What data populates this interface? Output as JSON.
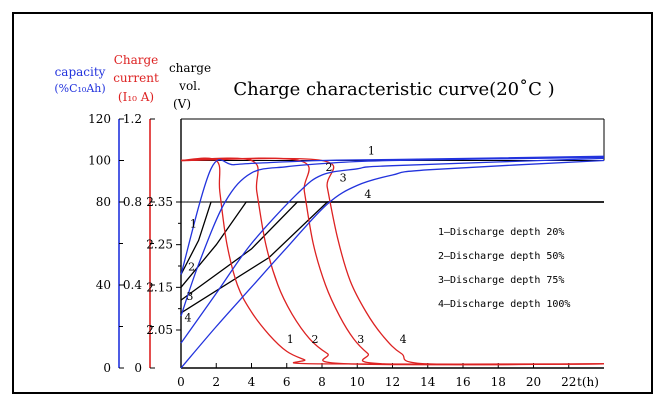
{
  "colors": {
    "capacity": "#2233dd",
    "current": "#dd2222",
    "voltage": "#000000",
    "frame": "#000000"
  },
  "chart_data": {
    "type": "line",
    "title": "Charge characteristic curve(20˚C )",
    "axes": {
      "x": {
        "label": "t(h)",
        "range": [
          0,
          24
        ],
        "ticks": [
          "0",
          "2",
          "4",
          "6",
          "8",
          "10",
          "12",
          "14",
          "16",
          "18",
          "20",
          "22"
        ]
      },
      "capacity": {
        "label_lines": [
          "capacity",
          "(%C₁₀Ah)"
        ],
        "range": [
          0,
          120
        ],
        "ticks": [
          "0",
          "40",
          "80",
          "100",
          "120"
        ]
      },
      "current": {
        "label_lines": [
          "Charge",
          "current",
          "(I₁₀ A)"
        ],
        "range": [
          0,
          1.2
        ],
        "ticks": [
          "0",
          "0.4",
          "0.8",
          "1.2"
        ]
      },
      "voltage": {
        "label_lines": [
          "charge",
          "vol.",
          "(V)"
        ],
        "range": [
          1.95,
          2.4
        ],
        "ticks": [
          "2.05",
          "2.15",
          "2.25",
          "2.35"
        ]
      }
    },
    "series": [
      {
        "name": "1",
        "kind": "voltage",
        "x": [
          0,
          1,
          1.7,
          24
        ],
        "y": [
          2.18,
          2.26,
          2.35,
          2.35
        ]
      },
      {
        "name": "2",
        "kind": "voltage",
        "x": [
          0,
          2,
          3.7,
          24
        ],
        "y": [
          2.15,
          2.25,
          2.35,
          2.35
        ]
      },
      {
        "name": "3",
        "kind": "voltage",
        "x": [
          0,
          4,
          6.6,
          24
        ],
        "y": [
          2.12,
          2.24,
          2.35,
          2.35
        ]
      },
      {
        "name": "4",
        "kind": "voltage",
        "x": [
          0,
          5,
          8.3,
          24
        ],
        "y": [
          2.09,
          2.22,
          2.35,
          2.35
        ]
      },
      {
        "name": "1",
        "kind": "current",
        "x": [
          0,
          2,
          2.2,
          2.6,
          3.2,
          4,
          5,
          6,
          7,
          7.8,
          24
        ],
        "y": [
          1.0,
          1.0,
          0.85,
          0.6,
          0.4,
          0.27,
          0.16,
          0.08,
          0.04,
          0.02,
          0.02
        ]
      },
      {
        "name": "2",
        "kind": "current",
        "x": [
          0,
          4,
          4.3,
          4.8,
          5.5,
          6.3,
          7.3,
          8.3,
          9.5,
          24
        ],
        "y": [
          1.0,
          1.0,
          0.85,
          0.6,
          0.4,
          0.26,
          0.14,
          0.07,
          0.02,
          0.02
        ]
      },
      {
        "name": "3",
        "kind": "current",
        "x": [
          0,
          6.7,
          7,
          7.5,
          8.2,
          9,
          9.8,
          10.6,
          11.5,
          24
        ],
        "y": [
          1.0,
          1.0,
          0.85,
          0.6,
          0.4,
          0.25,
          0.14,
          0.07,
          0.02,
          0.02
        ]
      },
      {
        "name": "4",
        "kind": "current",
        "x": [
          0,
          8,
          8.3,
          8.9,
          9.6,
          10.5,
          11.5,
          12.5,
          14,
          24
        ],
        "y": [
          1.0,
          1.0,
          0.87,
          0.62,
          0.42,
          0.27,
          0.15,
          0.07,
          0.02,
          0.02
        ]
      },
      {
        "name": "1",
        "kind": "capacity",
        "x": [
          0,
          1.7,
          3,
          5,
          8,
          12,
          24
        ],
        "y": [
          45,
          96,
          98,
          99,
          100,
          100.5,
          102
        ]
      },
      {
        "name": "2",
        "kind": "capacity",
        "x": [
          0,
          1,
          2.5,
          4,
          6,
          8,
          12,
          24
        ],
        "y": [
          25,
          50,
          80,
          94,
          97,
          98.5,
          100,
          101.5
        ]
      },
      {
        "name": "3",
        "kind": "capacity",
        "x": [
          0,
          2,
          4,
          6.6,
          8,
          10,
          12,
          24
        ],
        "y": [
          12,
          36,
          60,
          84,
          93,
          96,
          97.5,
          101
        ]
      },
      {
        "name": "4",
        "kind": "capacity",
        "x": [
          0,
          2,
          4,
          6,
          8.3,
          10,
          12,
          14,
          24
        ],
        "y": [
          0,
          20,
          39,
          58,
          79,
          88,
          93,
          95.5,
          100
        ]
      }
    ],
    "curve_labels": [
      {
        "text": "1",
        "kind": "voltage",
        "x": 0.7,
        "y": 2.29
      },
      {
        "text": "2",
        "kind": "voltage",
        "x": 0.6,
        "y": 2.19
      },
      {
        "text": "3",
        "kind": "voltage",
        "x": 0.5,
        "y": 2.12
      },
      {
        "text": "4",
        "kind": "voltage",
        "x": 0.4,
        "y": 2.07
      },
      {
        "text": "1",
        "kind": "current",
        "x": 6.2,
        "y": 0.12
      },
      {
        "text": "2",
        "kind": "current",
        "x": 7.6,
        "y": 0.12
      },
      {
        "text": "3",
        "kind": "current",
        "x": 10.2,
        "y": 0.12
      },
      {
        "text": "4",
        "kind": "current",
        "x": 12.6,
        "y": 0.12
      },
      {
        "text": "1",
        "kind": "capacity",
        "x": 10.8,
        "y": 103
      },
      {
        "text": "2",
        "kind": "capacity",
        "x": 8.4,
        "y": 95
      },
      {
        "text": "3",
        "kind": "capacity",
        "x": 9.2,
        "y": 90
      },
      {
        "text": "4",
        "kind": "capacity",
        "x": 10.6,
        "y": 82
      }
    ],
    "legend": [
      "1—Discharge depth 20%",
      "2—Discharge depth 50%",
      "3—Discharge depth 75%",
      "4—Discharge depth 100%"
    ],
    "legend_position": "right-middle"
  }
}
